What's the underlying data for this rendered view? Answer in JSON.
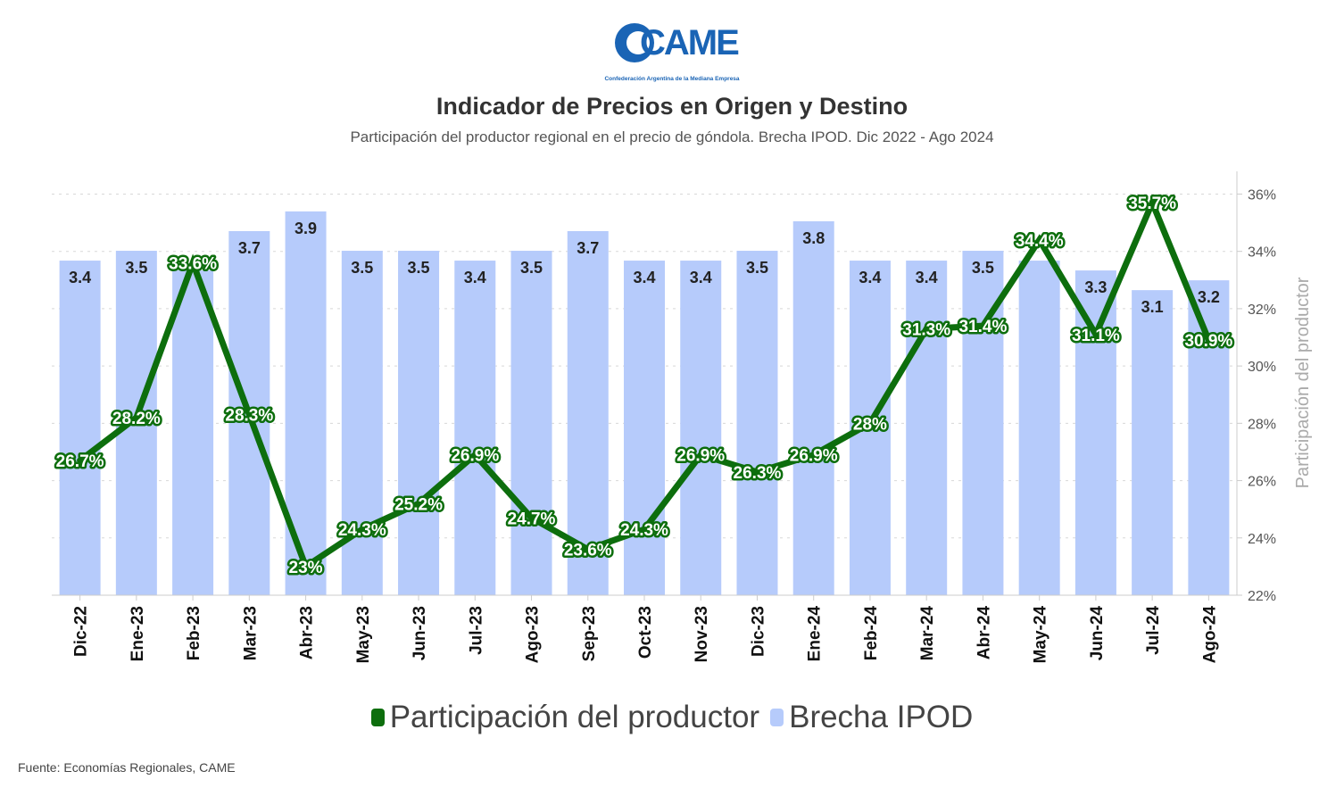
{
  "header": {
    "logo_text": "CAME",
    "logo_caption": "Confederación Argentina de la Mediana Empresa",
    "title": "Indicador de Precios en Origen y Destino",
    "subtitle": "Participación del productor regional en el precio de góndola. Brecha IPOD. Dic 2022 - Ago 2024"
  },
  "chart_data": {
    "type": "bar",
    "categories": [
      "Dic-22",
      "Ene-23",
      "Feb-23",
      "Mar-23",
      "Abr-23",
      "May-23",
      "Jun-23",
      "Jul-23",
      "Ago-23",
      "Sep-23",
      "Oct-23",
      "Nov-23",
      "Dic-23",
      "Ene-24",
      "Feb-24",
      "Mar-24",
      "Abr-24",
      "May-24",
      "Jun-24",
      "Jul-24",
      "Ago-24"
    ],
    "series": [
      {
        "name": "Brecha IPOD",
        "type": "bar",
        "color": "#b6cbfb",
        "values": [
          3.4,
          3.5,
          3.3,
          3.7,
          3.9,
          3.5,
          3.5,
          3.4,
          3.5,
          3.7,
          3.4,
          3.4,
          3.5,
          3.8,
          3.4,
          3.4,
          3.5,
          3.4,
          3.3,
          3.1,
          3.2
        ],
        "labels": [
          "3.4",
          "3.5",
          "",
          "3.7",
          "3.9",
          "3.5",
          "3.5",
          "3.4",
          "3.5",
          "3.7",
          "3.4",
          "3.4",
          "3.5",
          "3.8",
          "3.4",
          "3.4",
          "3.5",
          "",
          "3.3",
          "3.1",
          "3.2"
        ]
      },
      {
        "name": "Participación del productor",
        "type": "line",
        "axis": "right",
        "color": "#0d6e0d",
        "values": [
          26.7,
          28.2,
          33.6,
          28.3,
          23,
          24.3,
          25.2,
          26.9,
          24.7,
          23.6,
          24.3,
          26.9,
          26.3,
          26.9,
          28,
          31.3,
          31.4,
          34.4,
          31.1,
          35.7,
          30.9
        ],
        "labels": [
          "26.7%",
          "28.2%",
          "33.6%",
          "28.3%",
          "23%",
          "24.3%",
          "25.2%",
          "26.9%",
          "24.7%",
          "23.6%",
          "24.3%",
          "26.9%",
          "26.3%",
          "26.9%",
          "28%",
          "31.3%",
          "31.4%",
          "34.4%",
          "31.1%",
          "35.7%",
          "30.9%"
        ]
      }
    ],
    "y2_axis": {
      "label": "Participación del productor",
      "range": [
        22,
        36.7
      ],
      "ticks": [
        22,
        24,
        26,
        28,
        30,
        32,
        34,
        36
      ],
      "tick_labels": [
        "22%",
        "24%",
        "26%",
        "28%",
        "30%",
        "32%",
        "34%",
        "36%"
      ]
    },
    "grid": true,
    "legend_position": "bottom"
  },
  "legend": [
    {
      "label": "Participación del productor",
      "color": "#0d6e0d"
    },
    {
      "label": "Brecha IPOD",
      "color": "#b6cbfb"
    }
  ],
  "footer": {
    "source": "Fuente: Economías Regionales, CAME"
  }
}
